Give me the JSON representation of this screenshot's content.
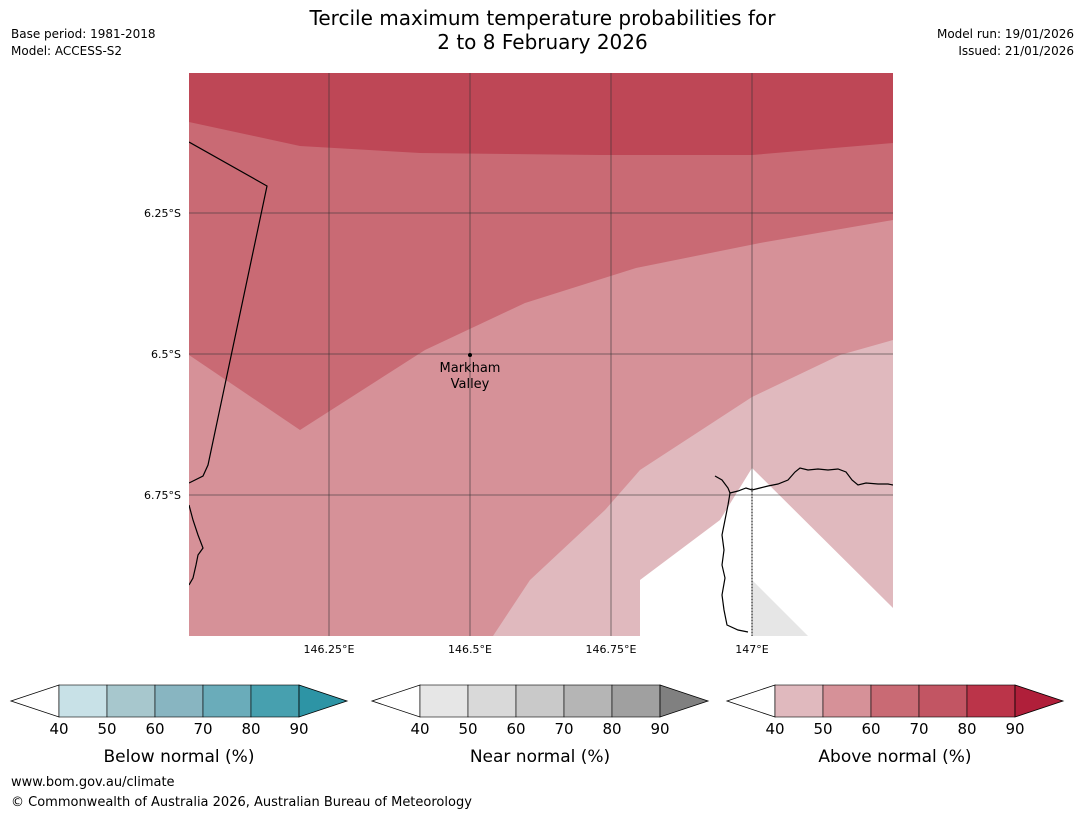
{
  "title_line1": "Tercile maximum temperature probabilities for",
  "title_line2": "2 to 8 February 2026",
  "meta_left": [
    "Base period: 1981-2018",
    "Model: ACCESS-S2"
  ],
  "meta_right": [
    "Model run: 19/01/2026",
    "Issued: 21/01/2026"
  ],
  "map": {
    "lat_labels": [
      "6.25°S",
      "6.5°S",
      "6.75°S"
    ],
    "lon_labels": [
      "146.25°E",
      "146.5°E",
      "146.75°E",
      "147°E"
    ],
    "place_name": [
      "Markham",
      "Valley"
    ],
    "colors": {
      "above_40_50": "#e0b9be",
      "above_50_60": "#d69198",
      "above_60_70": "#c96a74",
      "above_70_80": "#be4756",
      "near_40_50": "#e6e6e6",
      "land_white": "#ffffff"
    }
  },
  "legends": [
    {
      "label": "Below normal (%)",
      "ticks": [
        "40",
        "50",
        "60",
        "70",
        "80",
        "90"
      ],
      "colors": [
        "#ffffff",
        "#c8e1e7",
        "#a7c7cd",
        "#88b5c1",
        "#6aacba",
        "#47a0af",
        "#2d94a5"
      ]
    },
    {
      "label": "Near normal (%)",
      "ticks": [
        "40",
        "50",
        "60",
        "70",
        "80",
        "90"
      ],
      "colors": [
        "#ffffff",
        "#e6e6e6",
        "#d9d9d9",
        "#c9c9c9",
        "#b5b5b5",
        "#a0a0a0",
        "#808080"
      ]
    },
    {
      "label": "Above normal (%)",
      "ticks": [
        "40",
        "50",
        "60",
        "70",
        "80",
        "90"
      ],
      "colors": [
        "#ffffff",
        "#e0b9be",
        "#d69198",
        "#c96a74",
        "#c25563",
        "#bb3449",
        "#b01f3a"
      ]
    }
  ],
  "footer": {
    "url": "www.bom.gov.au/climate",
    "copyright": "© Commonwealth of Australia 2026, Australian Bureau of Meteorology"
  }
}
